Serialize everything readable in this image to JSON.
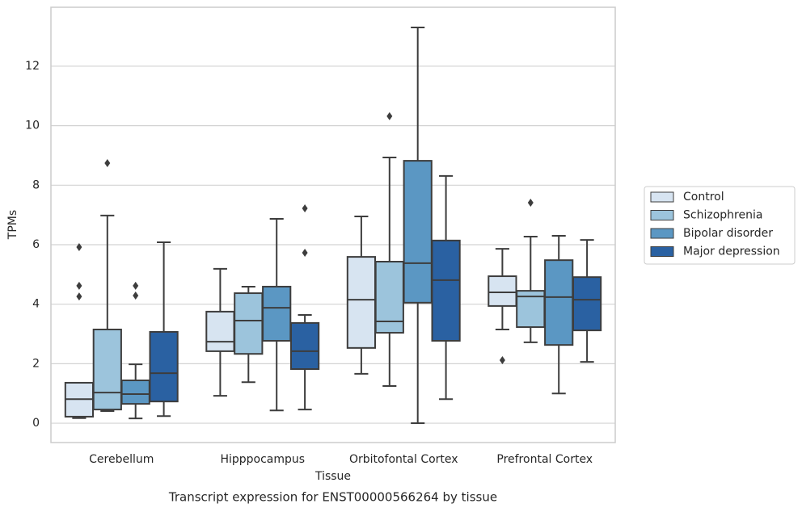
{
  "chart_data": {
    "type": "box",
    "title": "Transcript expression for ENST00000566264 by tissue",
    "xlabel": "Tissue",
    "ylabel": "TPMs",
    "categories": [
      "Cerebellum",
      "Hipppocampus",
      "Orbitofontal Cortex",
      "Prefrontal Cortex"
    ],
    "ylim": [
      -0.65,
      13.98
    ],
    "yticks": [
      0,
      2,
      4,
      6,
      8,
      10,
      12
    ],
    "grid": true,
    "legend": "right",
    "series": [
      {
        "name": "Control",
        "color": "#d7e4f1",
        "boxes": [
          {
            "whislo": 0.17,
            "q1": 0.22,
            "med": 0.81,
            "q3": 1.36,
            "whishi": 1.36,
            "fliers": [
              5.92,
              4.62,
              4.26
            ]
          },
          {
            "whislo": 0.92,
            "q1": 2.42,
            "med": 2.74,
            "q3": 3.75,
            "whishi": 5.19,
            "fliers": []
          },
          {
            "whislo": 1.66,
            "q1": 2.53,
            "med": 4.15,
            "q3": 5.59,
            "whishi": 6.95,
            "fliers": []
          },
          {
            "whislo": 3.15,
            "q1": 3.94,
            "med": 4.4,
            "q3": 4.94,
            "whishi": 5.86,
            "fliers": [
              2.12
            ]
          }
        ]
      },
      {
        "name": "Schizophrenia",
        "color": "#9cc4dc",
        "boxes": [
          {
            "whislo": 0.41,
            "q1": 0.46,
            "med": 1.03,
            "q3": 3.15,
            "whishi": 6.98,
            "fliers": [
              8.74
            ]
          },
          {
            "whislo": 1.38,
            "q1": 2.33,
            "med": 3.45,
            "q3": 4.37,
            "whishi": 4.59,
            "fliers": []
          },
          {
            "whislo": 1.25,
            "q1": 3.04,
            "med": 3.42,
            "q3": 5.43,
            "whishi": 8.93,
            "fliers": [
              10.32
            ]
          },
          {
            "whislo": 2.72,
            "q1": 3.23,
            "med": 4.26,
            "q3": 4.45,
            "whishi": 6.27,
            "fliers": [
              7.41
            ]
          }
        ]
      },
      {
        "name": "Bipolar disorder",
        "color": "#5b97c3",
        "boxes": [
          {
            "whislo": 0.16,
            "q1": 0.65,
            "med": 0.98,
            "q3": 1.44,
            "whishi": 1.98,
            "fliers": [
              4.62,
              4.29
            ]
          },
          {
            "whislo": 0.43,
            "q1": 2.77,
            "med": 3.88,
            "q3": 4.59,
            "whishi": 6.87,
            "fliers": []
          },
          {
            "whislo": 0,
            "q1": 4.05,
            "med": 5.38,
            "q3": 8.82,
            "whishi": 13.3,
            "fliers": []
          },
          {
            "whislo": 1.0,
            "q1": 2.63,
            "med": 4.24,
            "q3": 5.48,
            "whishi": 6.3,
            "fliers": []
          }
        ]
      },
      {
        "name": "Major depression",
        "color": "#2a61a2",
        "boxes": [
          {
            "whislo": 0.24,
            "q1": 0.73,
            "med": 1.68,
            "q3": 3.07,
            "whishi": 6.08,
            "fliers": []
          },
          {
            "whislo": 0.46,
            "q1": 1.82,
            "med": 2.42,
            "q3": 3.37,
            "whishi": 3.64,
            "fliers": [
              7.22,
              5.73
            ]
          },
          {
            "whislo": 0.81,
            "q1": 2.77,
            "med": 4.81,
            "q3": 6.14,
            "whishi": 8.31,
            "fliers": []
          },
          {
            "whislo": 2.06,
            "q1": 3.12,
            "med": 4.15,
            "q3": 4.91,
            "whishi": 6.16,
            "fliers": []
          }
        ]
      }
    ]
  }
}
